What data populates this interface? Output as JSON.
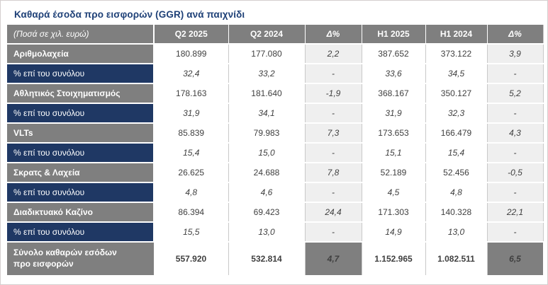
{
  "title": "Καθαρά έσοδα προ εισφορών (GGR) ανά παιχνίδι",
  "colors": {
    "title_blue": "#1E4077",
    "header_gray": "#7F7F7F",
    "pct_row_navy": "#1F3864",
    "delta_cell_bg": "#EFEFEF",
    "value_text": "#3F3F3F",
    "grid_line": "#C9C9C9"
  },
  "table": {
    "header": {
      "label": "(Ποσά σε χιλ. ευρώ)",
      "columns": [
        "Q2 2025",
        "Q2 2024",
        "Δ%",
        "H1 2025",
        "H1 2024",
        "Δ%"
      ]
    },
    "rows": [
      {
        "type": "game",
        "label": "Αριθμολαχεία",
        "values": [
          "180.899",
          "177.080",
          "2,2",
          "387.652",
          "373.122",
          "3,9"
        ]
      },
      {
        "type": "pct",
        "label": "% επί του συνόλου",
        "values": [
          "32,4",
          "33,2",
          "-",
          "33,6",
          "34,5",
          "-"
        ]
      },
      {
        "type": "game",
        "label": "Αθλητικός Στοιχηματισμός",
        "values": [
          "178.163",
          "181.640",
          "-1,9",
          "368.167",
          "350.127",
          "5,2"
        ]
      },
      {
        "type": "pct",
        "label": "% επί του συνόλου",
        "values": [
          "31,9",
          "34,1",
          "-",
          "31,9",
          "32,3",
          "-"
        ]
      },
      {
        "type": "game",
        "label": "VLTs",
        "values": [
          "85.839",
          "79.983",
          "7,3",
          "173.653",
          "166.479",
          "4,3"
        ]
      },
      {
        "type": "pct",
        "label": "% επί του συνόλου",
        "values": [
          "15,4",
          "15,0",
          "-",
          "15,1",
          "15,4",
          "-"
        ]
      },
      {
        "type": "game",
        "label": "Σκρατς & Λαχεία",
        "values": [
          "26.625",
          "24.688",
          "7,8",
          "52.189",
          "52.456",
          "-0,5"
        ]
      },
      {
        "type": "pct",
        "label": "% επί του συνόλου",
        "values": [
          "4,8",
          "4,6",
          "-",
          "4,5",
          "4,8",
          "-"
        ]
      },
      {
        "type": "game",
        "label": "Διαδικτυακό Καζίνο",
        "values": [
          "86.394",
          "69.423",
          "24,4",
          "171.303",
          "140.328",
          "22,1"
        ]
      },
      {
        "type": "pct",
        "label": "% επί του συνόλου",
        "values": [
          "15,5",
          "13,0",
          "-",
          "14,9",
          "13,0",
          "-"
        ]
      }
    ],
    "total": {
      "label": "Σύνολο καθαρών εσόδων προ εισφορών",
      "values": [
        "557.920",
        "532.814",
        "4,7",
        "1.152.965",
        "1.082.511",
        "6,5"
      ]
    }
  }
}
